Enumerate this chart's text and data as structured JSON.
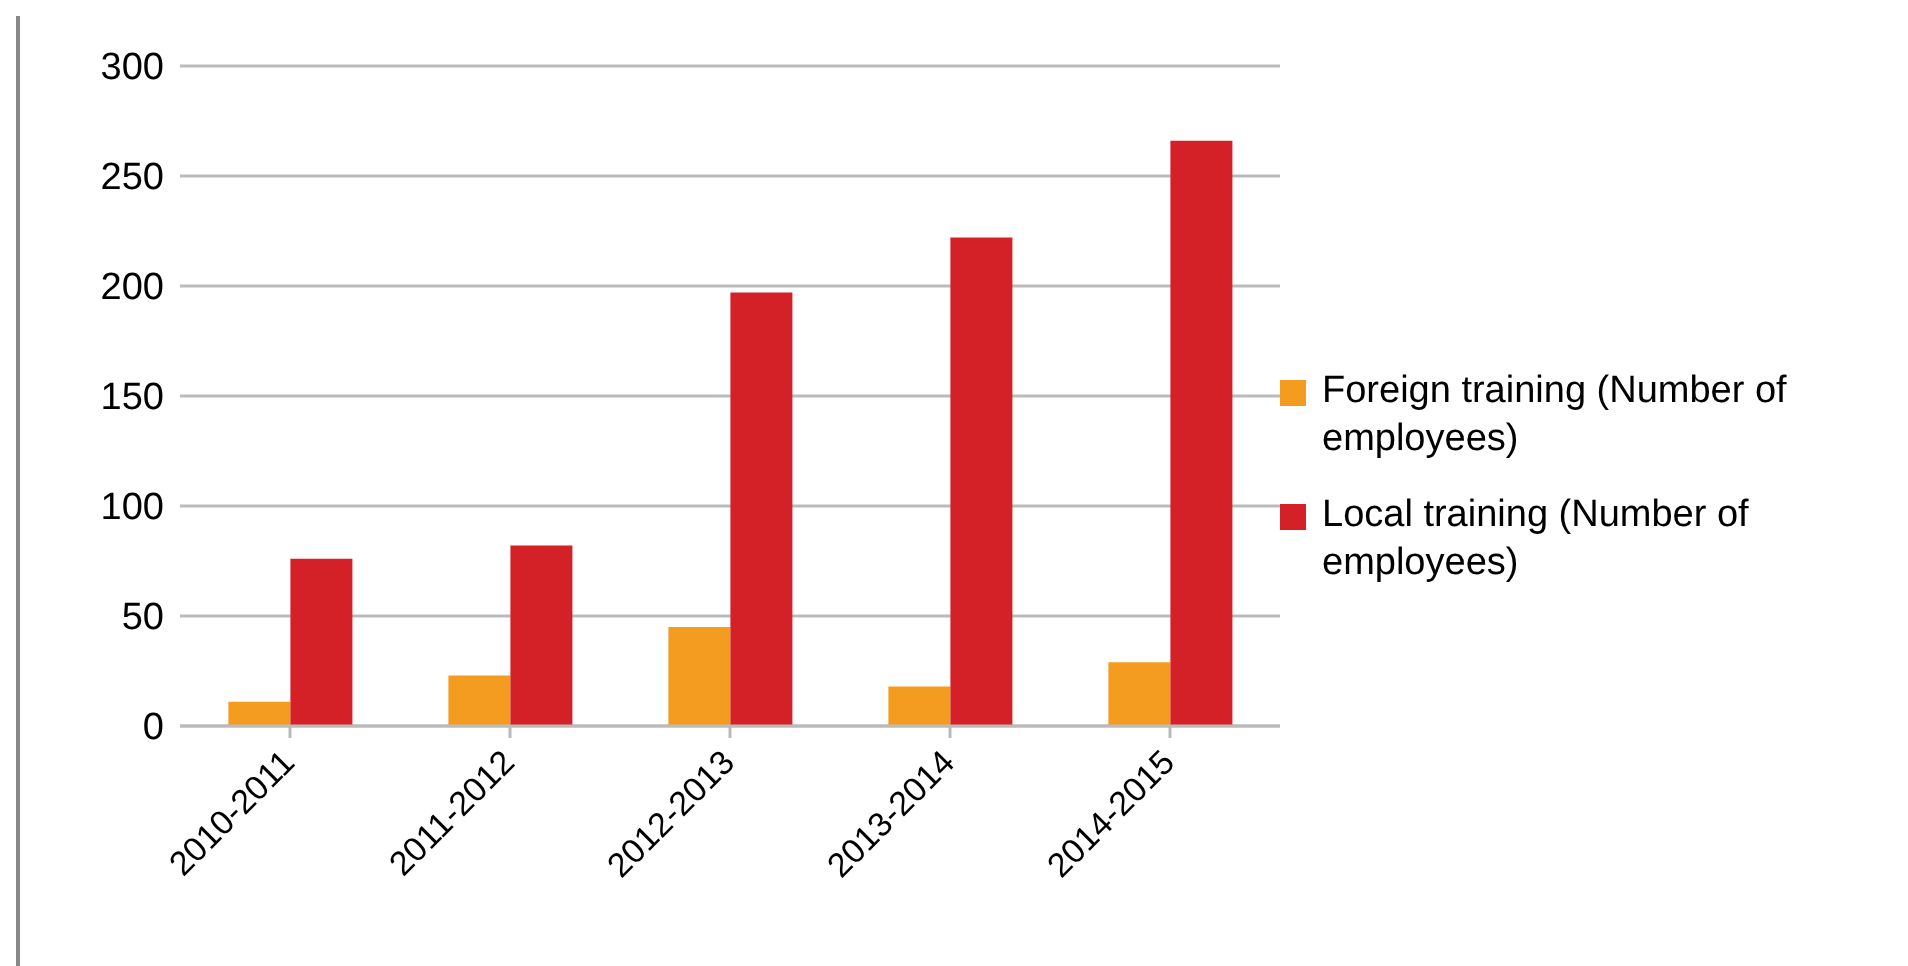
{
  "chart_data": {
    "type": "bar",
    "categories": [
      "2010-2011",
      "2011-2012",
      "2012-2013",
      "2013-2014",
      "2014-2015"
    ],
    "series": [
      {
        "name": "Foreign training (Number of employees)",
        "color": "#f39c1f",
        "values": [
          11,
          23,
          45,
          18,
          29
        ]
      },
      {
        "name": "Local training (Number of employees)",
        "color": "#d42027",
        "values": [
          76,
          82,
          197,
          222,
          266
        ]
      }
    ],
    "ylim": [
      0,
      300
    ],
    "yticks": [
      0,
      50,
      100,
      150,
      200,
      250,
      300
    ],
    "grid": "y",
    "legend": "right"
  }
}
